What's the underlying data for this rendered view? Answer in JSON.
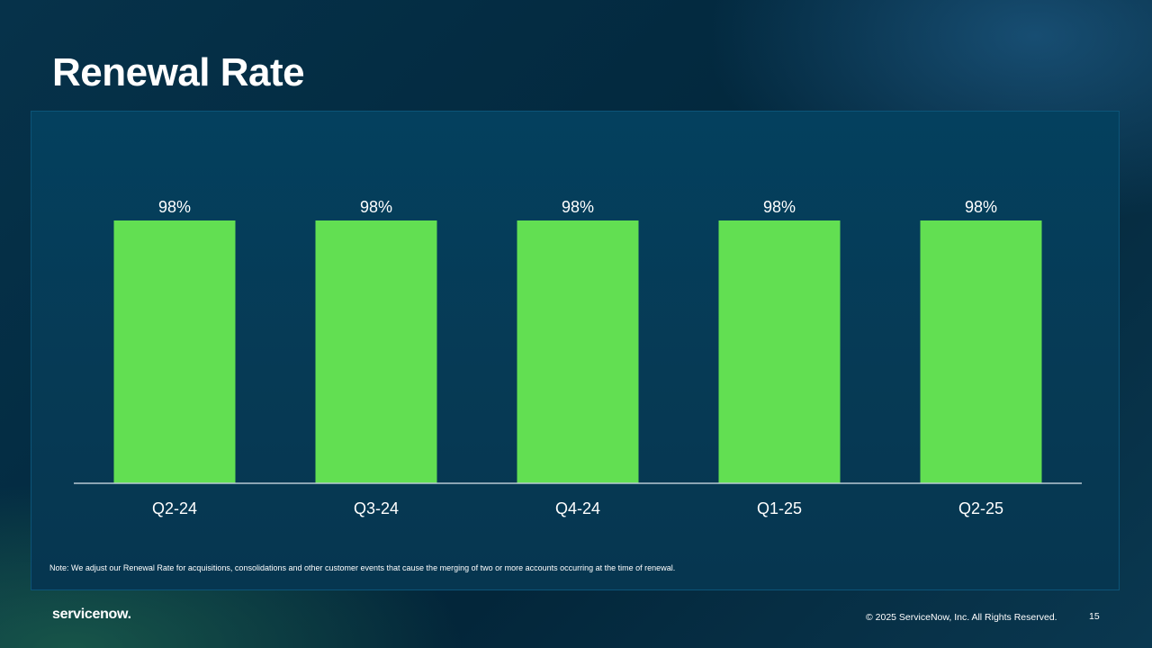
{
  "slide": {
    "title": "Renewal Rate",
    "note": "Note: We adjust our Renewal Rate for acquisitions, consolidations and other customer events that cause the merging of two or more accounts occurring at the time of renewal.",
    "footer": {
      "logo_text": "servicenow.",
      "copyright": "© 2025 ServiceNow, Inc. All Rights Reserved.",
      "page_number": "15"
    }
  },
  "colors": {
    "bar": "#62df52",
    "background": "#03263a",
    "text": "#ffffff"
  },
  "chart_data": {
    "type": "bar",
    "categories": [
      "Q2-24",
      "Q3-24",
      "Q4-24",
      "Q1-25",
      "Q2-25"
    ],
    "values": [
      98,
      98,
      98,
      98,
      98
    ],
    "data_labels": [
      "98%",
      "98%",
      "98%",
      "98%",
      "98%"
    ],
    "title": "",
    "xlabel": "",
    "ylabel": "",
    "ylim": [
      0,
      98
    ],
    "grid": false,
    "legend": "none"
  }
}
